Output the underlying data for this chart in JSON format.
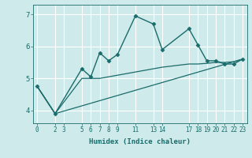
{
  "xlabel": "Humidex (Indice chaleur)",
  "background_color": "#ceeaea",
  "grid_color": "#ffffff",
  "line_color": "#1a6b6b",
  "xlim": [
    -0.5,
    23.5
  ],
  "ylim": [
    3.6,
    7.3
  ],
  "xticks": [
    0,
    2,
    3,
    5,
    6,
    7,
    8,
    9,
    11,
    13,
    14,
    17,
    18,
    19,
    20,
    21,
    22,
    23
  ],
  "yticks": [
    4,
    5,
    6,
    7
  ],
  "series": [
    {
      "x": [
        0,
        2,
        5,
        6,
        7,
        8,
        9,
        11,
        13,
        14,
        17,
        18,
        19,
        20,
        21,
        22,
        23
      ],
      "y": [
        4.75,
        3.9,
        5.3,
        5.05,
        5.8,
        5.55,
        5.75,
        6.95,
        6.7,
        5.9,
        6.55,
        6.05,
        5.55,
        5.55,
        5.45,
        5.45,
        5.6
      ],
      "marker": "D",
      "markersize": 2.5,
      "linewidth": 1.0
    },
    {
      "x": [
        0,
        2,
        5,
        6,
        7,
        8,
        9,
        11,
        14,
        17,
        18,
        19,
        20,
        21,
        22,
        23
      ],
      "y": [
        4.75,
        3.9,
        5.0,
        5.0,
        5.0,
        5.05,
        5.1,
        5.2,
        5.35,
        5.45,
        5.45,
        5.47,
        5.5,
        5.5,
        5.52,
        5.6
      ],
      "marker": null,
      "markersize": 0,
      "linewidth": 0.9
    },
    {
      "x": [
        0,
        2,
        23
      ],
      "y": [
        4.75,
        3.9,
        5.6
      ],
      "marker": null,
      "markersize": 0,
      "linewidth": 0.9
    }
  ]
}
